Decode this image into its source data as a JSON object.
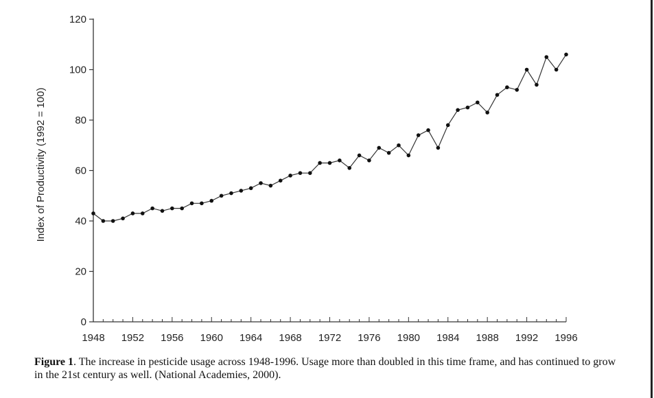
{
  "chart_data": {
    "type": "line",
    "title": "",
    "xlabel": "",
    "ylabel": "Index of Productivity (1992 = 100)",
    "xlim": [
      1948,
      1996
    ],
    "ylim": [
      0,
      120
    ],
    "x_ticks": [
      "1948",
      "1952",
      "1956",
      "1960",
      "1964",
      "1968",
      "1972",
      "1976",
      "1980",
      "1984",
      "1988",
      "1992",
      "1996"
    ],
    "y_ticks": [
      "0",
      "20",
      "40",
      "60",
      "80",
      "100",
      "120"
    ],
    "grid": false,
    "series": [
      {
        "x": [
          1948,
          1949,
          1950,
          1951,
          1952,
          1953,
          1954,
          1955,
          1956,
          1957,
          1958,
          1959,
          1960,
          1961,
          1962,
          1963,
          1964,
          1965,
          1966,
          1967,
          1968,
          1969,
          1970,
          1971,
          1972,
          1973,
          1974,
          1975,
          1976,
          1977,
          1978,
          1979,
          1980,
          1981,
          1982,
          1983,
          1984,
          1985,
          1986,
          1987,
          1988,
          1989,
          1990,
          1991,
          1992,
          1993,
          1994,
          1995,
          1996
        ],
        "values": [
          43,
          40,
          40,
          41,
          43,
          43,
          45,
          44,
          45,
          45,
          47,
          47,
          48,
          50,
          51,
          52,
          53,
          55,
          54,
          56,
          58,
          59,
          59,
          63,
          63,
          64,
          61,
          66,
          64,
          69,
          67,
          70,
          66,
          74,
          76,
          69,
          78,
          84,
          85,
          87,
          83,
          90,
          93,
          92,
          100,
          94,
          105,
          100,
          106
        ]
      }
    ]
  },
  "caption": {
    "label": "Figure 1",
    "text": ". The increase in pesticide usage across 1948-1996. Usage more than doubled in this time frame, and has continued to grow in the 21st century as well. (National Academies, 2000)."
  }
}
